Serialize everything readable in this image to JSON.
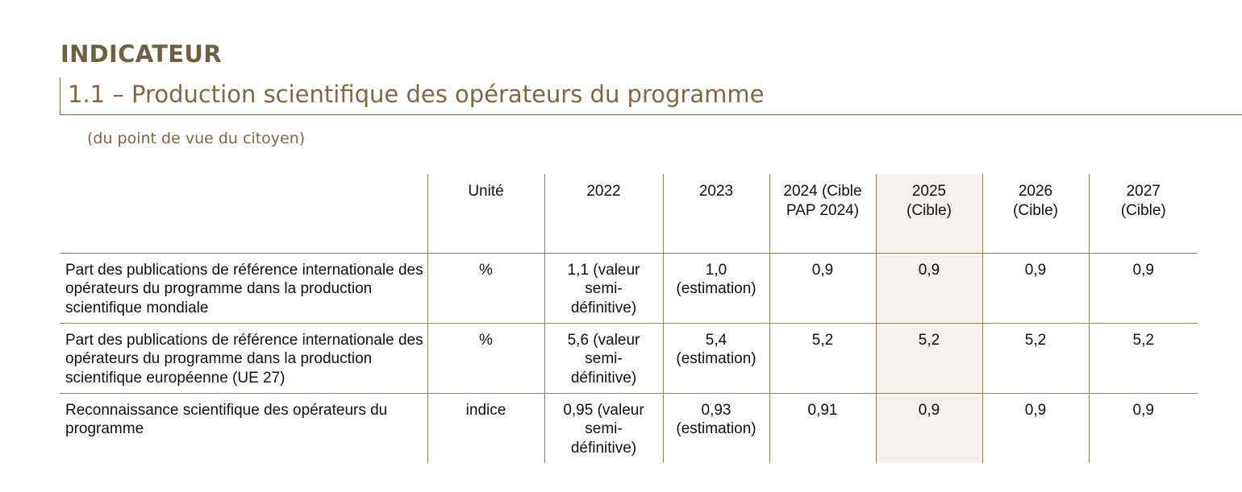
{
  "header": {
    "section_label": "INDICATEUR",
    "title": "1.1 – Production scientifique des opérateurs du programme",
    "subtitle": "(du point de vue du citoyen)"
  },
  "table": {
    "columns": [
      "",
      "Unité",
      "2022",
      "2023",
      "2024 (Cible PAP 2024)",
      "2025 (Cible)",
      "2026 (Cible)",
      "2027 (Cible)"
    ],
    "highlighted_column_index": 5,
    "rows": [
      {
        "label": "Part des publications de référence internationale des opérateurs du programme dans la production scientifique mondiale",
        "unit": "%",
        "y2022": "1,1 (valeur semi-définitive)",
        "y2023": "1,0 (estimation)",
        "y2024": "0,9",
        "y2025": "0,9",
        "y2026": "0,9",
        "y2027": "0,9"
      },
      {
        "label": "Part des publications de référence internationale des opérateurs du programme dans la production scientifique européenne (UE 27)",
        "unit": "%",
        "y2022": "5,6 (valeur semi-définitive)",
        "y2023": "5,4 (estimation)",
        "y2024": "5,2",
        "y2025": "5,2",
        "y2026": "5,2",
        "y2027": "5,2"
      },
      {
        "label": "Reconnaissance scientifique des opérateurs du programme",
        "unit": "indice",
        "y2022": "0,95 (valeur semi-définitive)",
        "y2023": "0,93 (estimation)",
        "y2024": "0,91",
        "y2025": "0,9",
        "y2026": "0,9",
        "y2027": "0,9"
      }
    ]
  },
  "colors": {
    "heading": "#6e6143",
    "title": "#7a6a48",
    "rule": "#8a7f64",
    "highlight_fill": "#f5f1ec"
  }
}
